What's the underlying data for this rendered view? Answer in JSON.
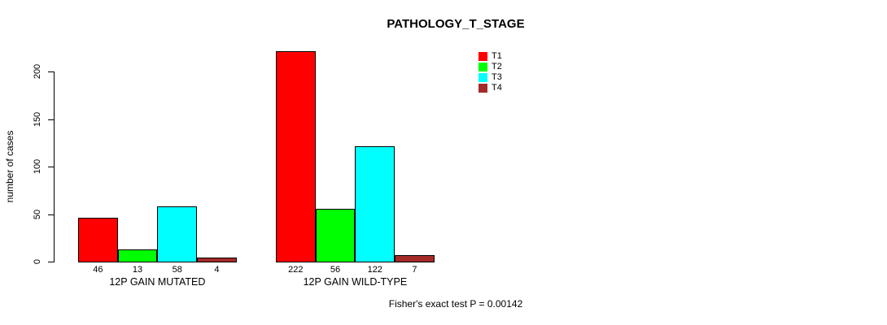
{
  "chart_data": {
    "type": "bar",
    "title": "PATHOLOGY_T_STAGE",
    "xlabel": "",
    "ylabel": "number of cases",
    "footer": "Fisher's exact test P = 0.00142",
    "categories": [
      "12P GAIN MUTATED",
      "12P GAIN WILD-TYPE"
    ],
    "series": [
      {
        "name": "T1",
        "color": "#FF0000",
        "values": [
          46,
          222
        ]
      },
      {
        "name": "T2",
        "color": "#00FF00",
        "values": [
          13,
          56
        ]
      },
      {
        "name": "T3",
        "color": "#00FFFF",
        "values": [
          58,
          122
        ]
      },
      {
        "name": "T4",
        "color": "#A52A2A",
        "values": [
          4,
          7
        ]
      }
    ],
    "bar_value_labels": [
      [
        "46",
        "13",
        "58",
        "4"
      ],
      [
        "222",
        "56",
        "122",
        "7"
      ]
    ],
    "yticks": [
      0,
      50,
      100,
      150,
      200
    ],
    "ylim": [
      0,
      232
    ],
    "grid": false,
    "legend_position": "topright",
    "legend_entries": [
      "T1",
      "T2",
      "T3",
      "T4"
    ],
    "bar_border_color": "#000000",
    "axis_color": "#000000",
    "background_color": "#FFFFFF"
  }
}
